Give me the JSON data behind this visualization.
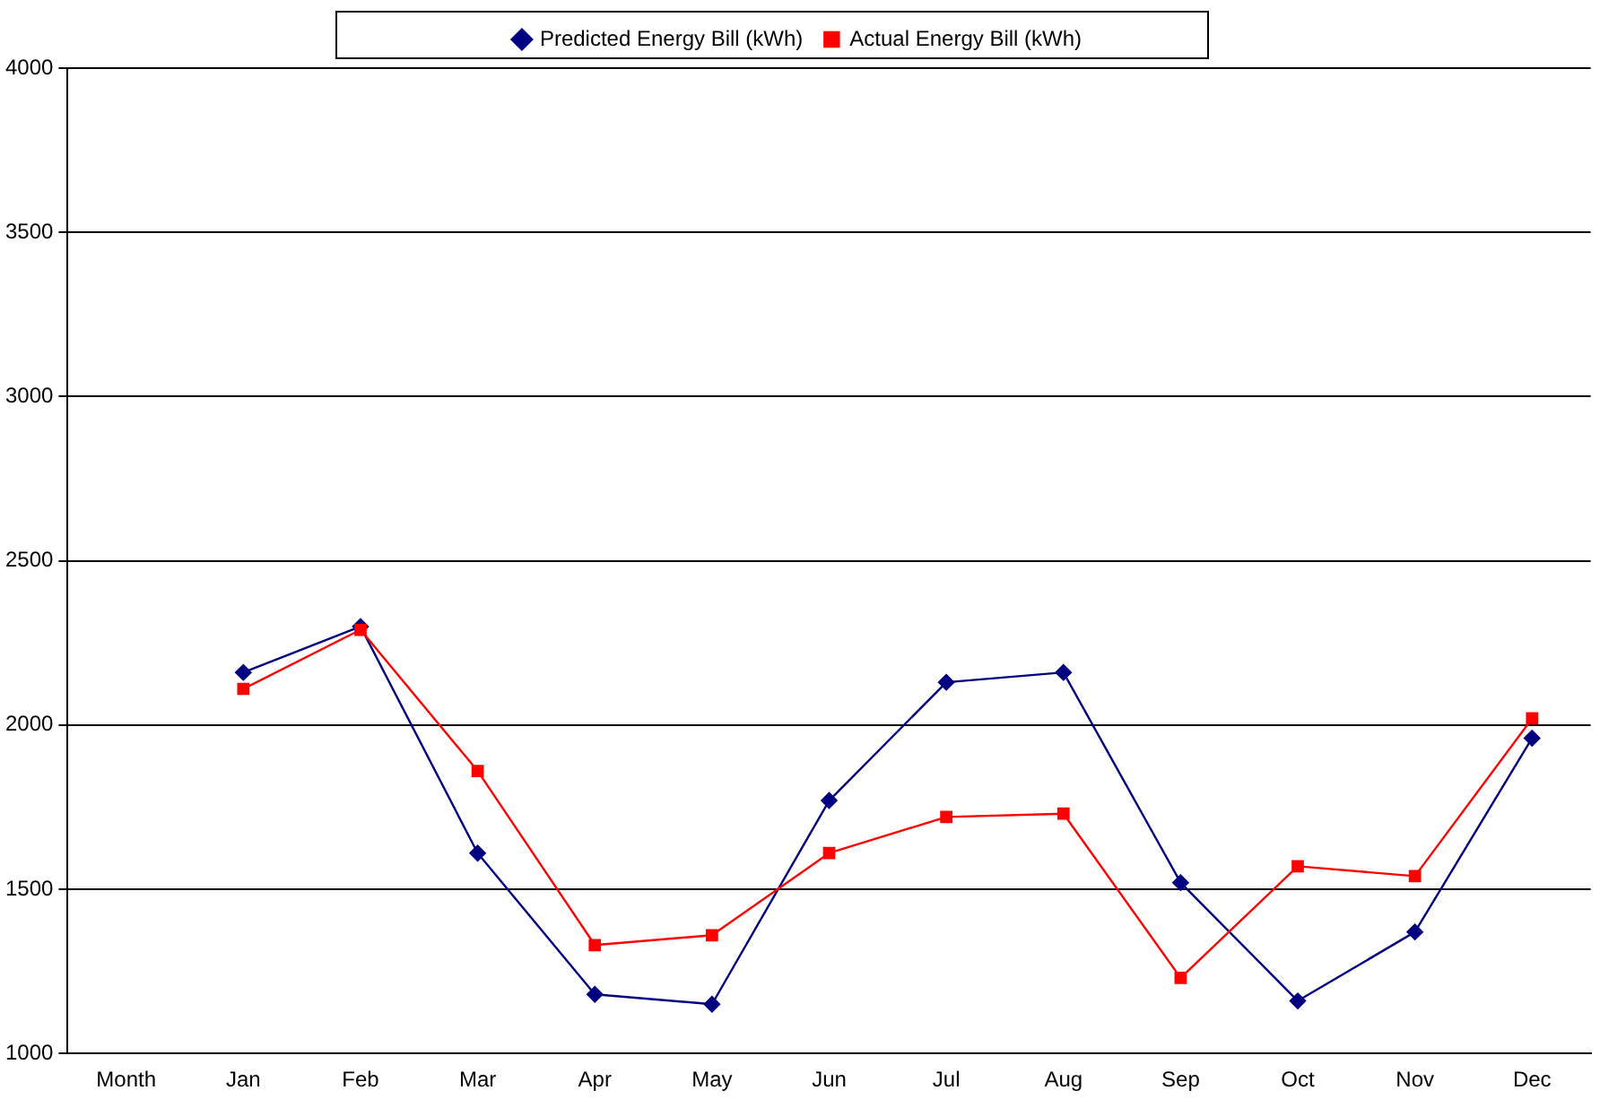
{
  "chart_data": {
    "type": "line",
    "categories": [
      "Month",
      "Jan",
      "Feb",
      "Mar",
      "Apr",
      "May",
      "Jun",
      "Jul",
      "Aug",
      "Sep",
      "Oct",
      "Nov",
      "Dec"
    ],
    "series": [
      {
        "name": "Predicted Energy Bill (kWh)",
        "color": "#000080",
        "marker": "diamond",
        "values": [
          null,
          2160,
          2300,
          1610,
          1180,
          1150,
          1770,
          2130,
          2160,
          1520,
          1160,
          1370,
          1960
        ]
      },
      {
        "name": "Actual Energy Bill (kWh)",
        "color": "#ff0000",
        "marker": "square",
        "values": [
          null,
          2110,
          2290,
          1860,
          1330,
          1360,
          1610,
          1720,
          1730,
          1230,
          1570,
          1540,
          2020
        ]
      }
    ],
    "ylim": [
      1000,
      4000
    ],
    "yticks": [
      1000,
      1500,
      2000,
      2500,
      3000,
      3500,
      4000
    ],
    "grid": "y",
    "legend": "top",
    "line_style": "solid"
  }
}
